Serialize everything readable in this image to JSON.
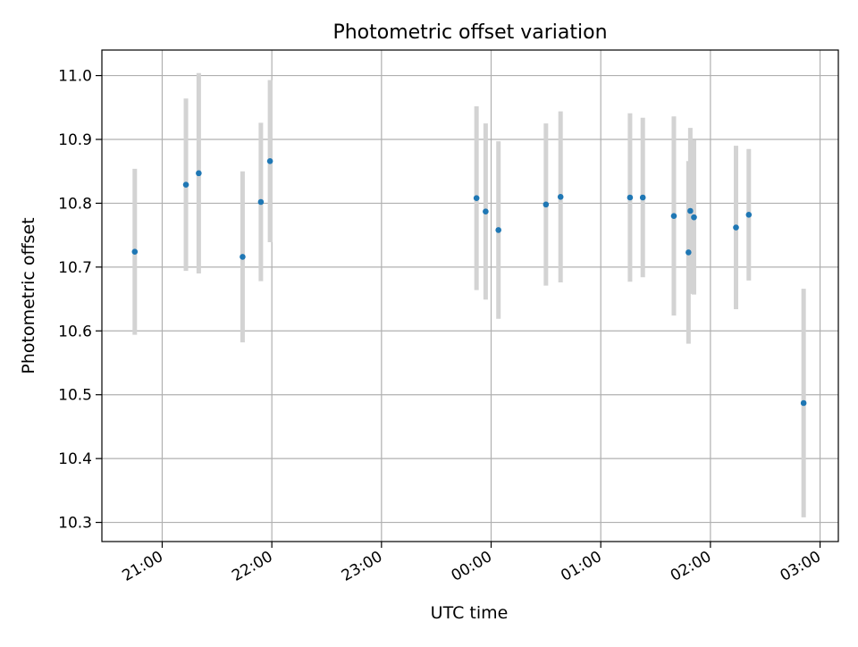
{
  "chart_data": {
    "type": "scatter",
    "title": "Photometric offset variation",
    "xlabel": "UTC time",
    "ylabel": "Photometric offset",
    "x_ticks": [
      "21:00",
      "22:00",
      "23:00",
      "00:00",
      "01:00",
      "02:00",
      "03:00"
    ],
    "y_ticks": [
      "10.3",
      "10.4",
      "10.5",
      "10.6",
      "10.7",
      "10.8",
      "10.9",
      "11.0"
    ],
    "x_range": [
      "20:27",
      "03:10"
    ],
    "ylim": [
      10.27,
      11.04
    ],
    "grid": true,
    "marker_color": "#1f77b4",
    "errorbar_color": "#d3d3d3",
    "points": [
      {
        "x": "20:45",
        "y": 10.724,
        "yerr": 0.13
      },
      {
        "x": "21:13",
        "y": 10.829,
        "yerr": 0.135
      },
      {
        "x": "21:20",
        "y": 10.847,
        "yerr": 0.157
      },
      {
        "x": "21:44",
        "y": 10.716,
        "yerr": 0.134
      },
      {
        "x": "21:54",
        "y": 10.802,
        "yerr": 0.124
      },
      {
        "x": "21:59",
        "y": 10.866,
        "yerr": 0.127
      },
      {
        "x": "23:52",
        "y": 10.808,
        "yerr": 0.144
      },
      {
        "x": "23:57",
        "y": 10.787,
        "yerr": 0.138
      },
      {
        "x": "00:04",
        "y": 10.758,
        "yerr": 0.139
      },
      {
        "x": "00:30",
        "y": 10.798,
        "yerr": 0.127
      },
      {
        "x": "00:38",
        "y": 10.81,
        "yerr": 0.134
      },
      {
        "x": "01:16",
        "y": 10.809,
        "yerr": 0.132
      },
      {
        "x": "01:23",
        "y": 10.809,
        "yerr": 0.125
      },
      {
        "x": "01:40",
        "y": 10.78,
        "yerr": 0.156
      },
      {
        "x": "01:48",
        "y": 10.723,
        "yerr": 0.143
      },
      {
        "x": "01:49",
        "y": 10.788,
        "yerr": 0.13
      },
      {
        "x": "01:51",
        "y": 10.778,
        "yerr": 0.121
      },
      {
        "x": "02:14",
        "y": 10.762,
        "yerr": 0.128
      },
      {
        "x": "02:21",
        "y": 10.782,
        "yerr": 0.103
      },
      {
        "x": "02:51",
        "y": 10.487,
        "yerr": 0.179
      }
    ]
  }
}
